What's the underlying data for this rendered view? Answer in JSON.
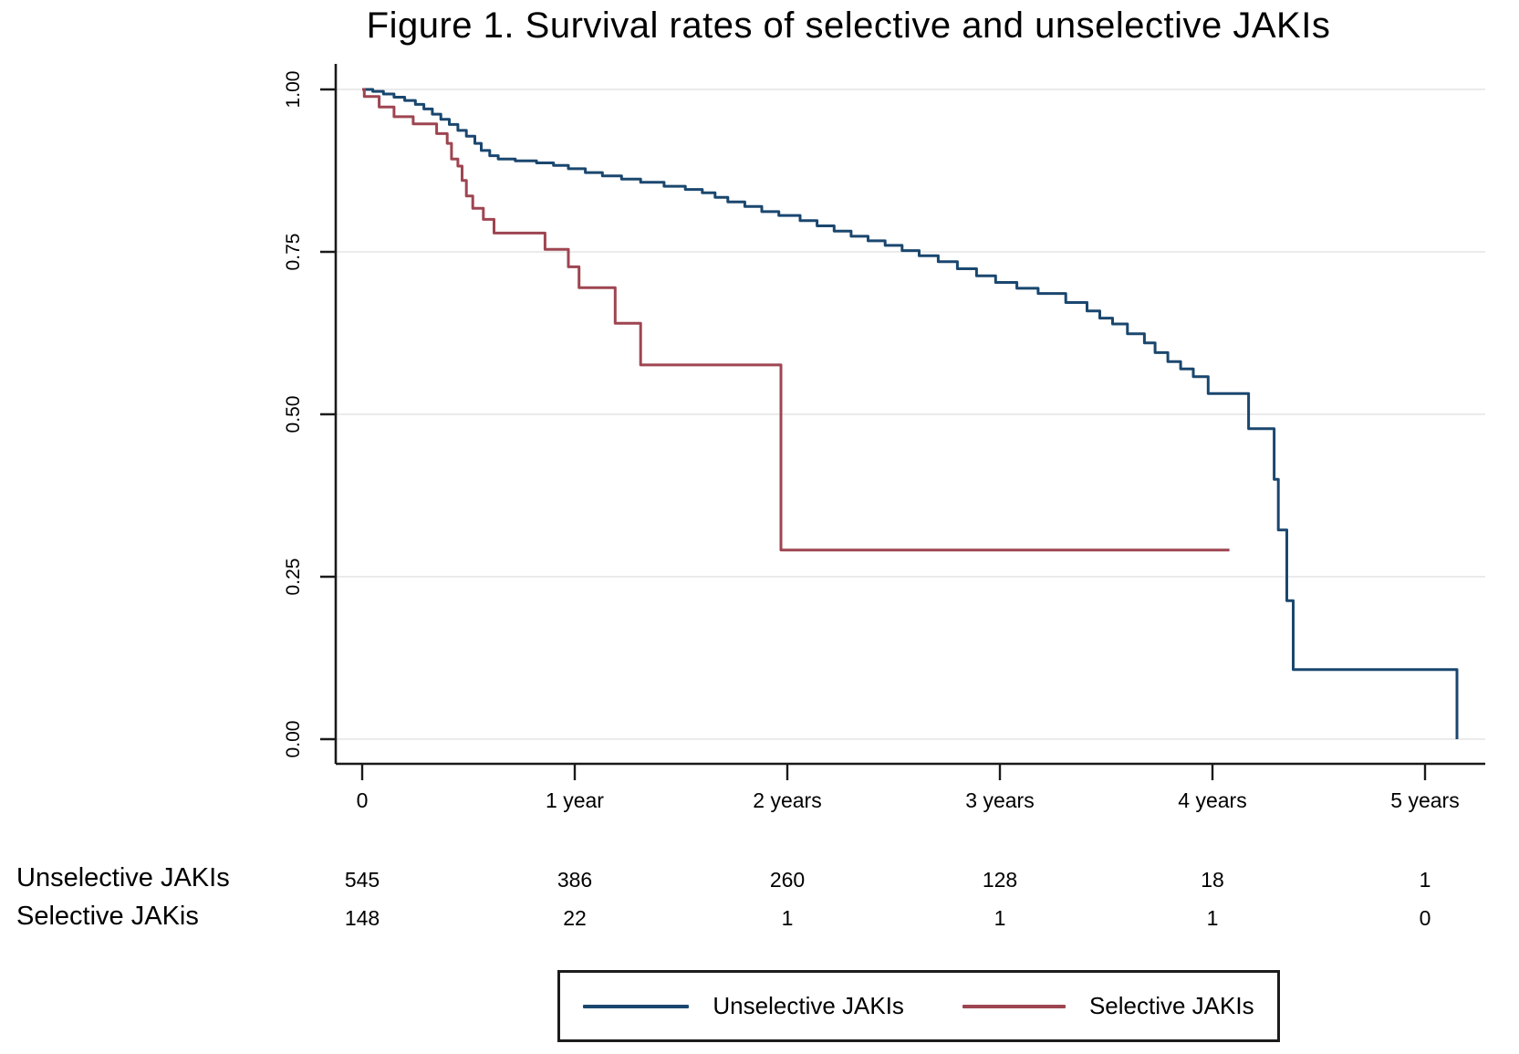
{
  "title": "Figure 1. Survival rates of selective and unselective JAKIs",
  "colors": {
    "unselective": "#1a476f",
    "selective": "#9e4551",
    "grid": "#ebebeb",
    "axis": "#1a1a1a",
    "background": "#ffffff"
  },
  "chart_data": {
    "type": "line",
    "subtype": "kaplan-meier-step",
    "title": "Figure 1. Survival rates of selective and unselective JAKIs",
    "xlabel": "",
    "ylabel": "",
    "grid": "horizontal",
    "legend_position": "bottom-center",
    "xlim": [
      0,
      5.3
    ],
    "ylim": [
      0.0,
      1.0
    ],
    "x_ticks": [
      {
        "t": 0,
        "label": "0"
      },
      {
        "t": 1,
        "label": "1 year"
      },
      {
        "t": 2,
        "label": "2 years"
      },
      {
        "t": 3,
        "label": "3 years"
      },
      {
        "t": 4,
        "label": "4 years"
      },
      {
        "t": 5,
        "label": "5 years"
      }
    ],
    "y_ticks": [
      {
        "v": 1.0,
        "label": "1.00"
      },
      {
        "v": 0.75,
        "label": "0.75"
      },
      {
        "v": 0.5,
        "label": "0.50"
      },
      {
        "v": 0.25,
        "label": "0.25"
      },
      {
        "v": 0.0,
        "label": "0.00"
      }
    ],
    "series": [
      {
        "name": "Unselective JAKIs",
        "color": "#1a476f",
        "end_t": 5.15,
        "points": [
          [
            0.0,
            1.0
          ],
          [
            0.05,
            0.997
          ],
          [
            0.1,
            0.993
          ],
          [
            0.15,
            0.988
          ],
          [
            0.2,
            0.983
          ],
          [
            0.25,
            0.977
          ],
          [
            0.29,
            0.97
          ],
          [
            0.33,
            0.962
          ],
          [
            0.37,
            0.954
          ],
          [
            0.41,
            0.946
          ],
          [
            0.45,
            0.937
          ],
          [
            0.49,
            0.928
          ],
          [
            0.53,
            0.917
          ],
          [
            0.56,
            0.906
          ],
          [
            0.6,
            0.898
          ],
          [
            0.64,
            0.893
          ],
          [
            0.72,
            0.89
          ],
          [
            0.82,
            0.887
          ],
          [
            0.9,
            0.883
          ],
          [
            0.97,
            0.878
          ],
          [
            1.05,
            0.872
          ],
          [
            1.13,
            0.867
          ],
          [
            1.22,
            0.862
          ],
          [
            1.31,
            0.857
          ],
          [
            1.42,
            0.851
          ],
          [
            1.52,
            0.846
          ],
          [
            1.6,
            0.841
          ],
          [
            1.66,
            0.834
          ],
          [
            1.72,
            0.827
          ],
          [
            1.8,
            0.82
          ],
          [
            1.88,
            0.812
          ],
          [
            1.96,
            0.806
          ],
          [
            2.06,
            0.798
          ],
          [
            2.14,
            0.79
          ],
          [
            2.22,
            0.782
          ],
          [
            2.3,
            0.774
          ],
          [
            2.38,
            0.767
          ],
          [
            2.46,
            0.76
          ],
          [
            2.54,
            0.752
          ],
          [
            2.62,
            0.744
          ],
          [
            2.71,
            0.735
          ],
          [
            2.8,
            0.724
          ],
          [
            2.89,
            0.713
          ],
          [
            2.98,
            0.703
          ],
          [
            3.08,
            0.694
          ],
          [
            3.18,
            0.686
          ],
          [
            3.31,
            0.672
          ],
          [
            3.41,
            0.659
          ],
          [
            3.47,
            0.648
          ],
          [
            3.53,
            0.639
          ],
          [
            3.6,
            0.624
          ],
          [
            3.68,
            0.61
          ],
          [
            3.73,
            0.595
          ],
          [
            3.79,
            0.581
          ],
          [
            3.85,
            0.57
          ],
          [
            3.91,
            0.558
          ],
          [
            3.98,
            0.532
          ],
          [
            4.17,
            0.478
          ],
          [
            4.29,
            0.4
          ],
          [
            4.31,
            0.322
          ],
          [
            4.35,
            0.213
          ],
          [
            4.38,
            0.107
          ],
          [
            5.15,
            0.0
          ]
        ]
      },
      {
        "name": "Selective JAKIs",
        "color": "#9e4551",
        "end_t": 4.08,
        "points": [
          [
            0.0,
            1.0
          ],
          [
            0.01,
            0.989
          ],
          [
            0.08,
            0.973
          ],
          [
            0.15,
            0.958
          ],
          [
            0.24,
            0.947
          ],
          [
            0.35,
            0.932
          ],
          [
            0.4,
            0.917
          ],
          [
            0.42,
            0.893
          ],
          [
            0.45,
            0.882
          ],
          [
            0.47,
            0.86
          ],
          [
            0.49,
            0.836
          ],
          [
            0.52,
            0.817
          ],
          [
            0.57,
            0.8
          ],
          [
            0.62,
            0.779
          ],
          [
            0.86,
            0.754
          ],
          [
            0.97,
            0.727
          ],
          [
            1.02,
            0.695
          ],
          [
            1.19,
            0.64
          ],
          [
            1.31,
            0.576
          ],
          [
            1.97,
            0.291
          ]
        ]
      }
    ]
  },
  "risk_table": {
    "rows": [
      {
        "label": "Unselective JAKIs",
        "counts": [
          545,
          386,
          260,
          128,
          18,
          1
        ]
      },
      {
        "label": "Selective JAKis",
        "counts": [
          148,
          22,
          1,
          1,
          1,
          0
        ]
      }
    ]
  },
  "legend": {
    "items": [
      {
        "label": "Unselective JAKIs",
        "color": "#1a476f"
      },
      {
        "label": "Selective JAKIs",
        "color": "#9e4551"
      }
    ]
  }
}
